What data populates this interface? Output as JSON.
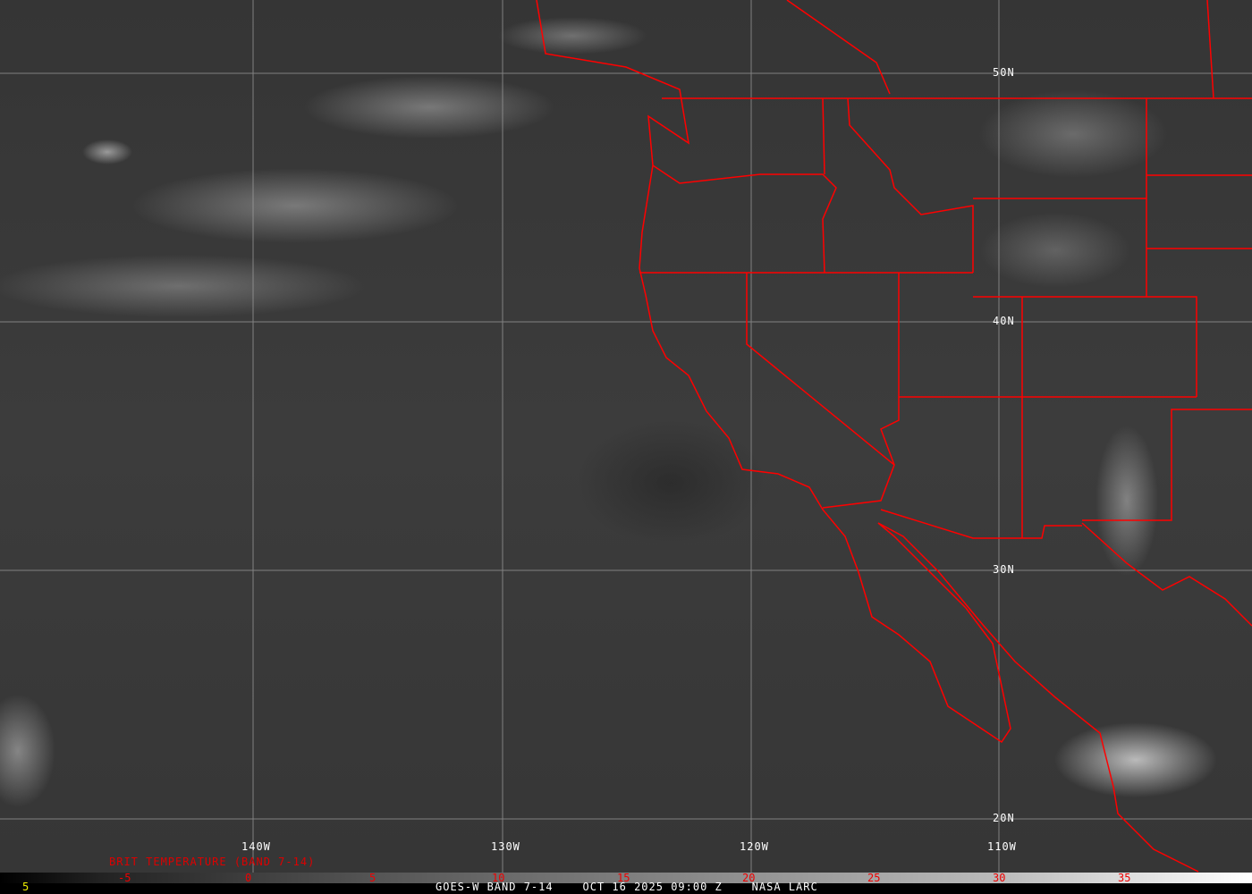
{
  "map": {
    "longitude_labels": [
      "140W",
      "130W",
      "120W",
      "110W"
    ],
    "latitude_labels": [
      "50N",
      "40N",
      "30N",
      "20N"
    ],
    "boundary_color": "#ff0000",
    "grid_color": "#a0a0a0"
  },
  "legend": {
    "title": "BRIT TEMPERATURE (BAND 7-14)",
    "ticks": [
      "-5",
      "0",
      "5",
      "10",
      "15",
      "20",
      "25",
      "30",
      "35"
    ],
    "tick_color": "#ff0000"
  },
  "footer": {
    "corner_value": "5",
    "caption": "GOES-W BAND 7-14    OCT 16 2025 09:00 Z    NASA LARC"
  }
}
